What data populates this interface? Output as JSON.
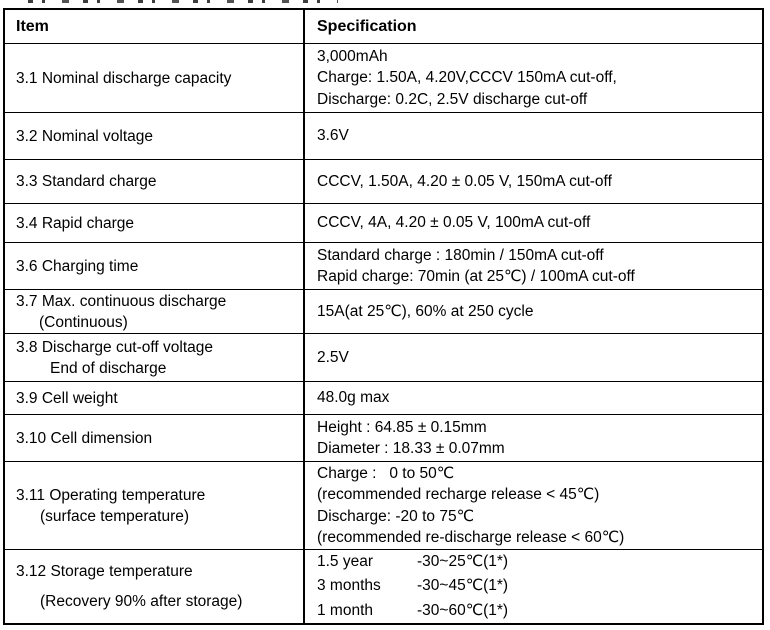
{
  "table": {
    "header": {
      "item": "Item",
      "spec": "Specification"
    },
    "rows": [
      {
        "item": [
          "3.1 Nominal discharge capacity"
        ],
        "spec": [
          "3,000mAh",
          "Charge: 1.50A, 4.20V,CCCV 150mA cut-off,",
          "Discharge: 0.2C, 2.5V discharge cut-off"
        ]
      },
      {
        "item": [
          "3.2 Nominal voltage"
        ],
        "spec": [
          "3.6V"
        ]
      },
      {
        "item": [
          "3.3 Standard charge"
        ],
        "spec": [
          "CCCV, 1.50A, 4.20 ± 0.05 V, 150mA cut-off"
        ]
      },
      {
        "item": [
          "3.4 Rapid charge"
        ],
        "spec": [
          "CCCV, 4A, 4.20 ± 0.05 V, 100mA cut-off"
        ]
      },
      {
        "item": [
          "3.6 Charging time"
        ],
        "spec": [
          "Standard charge : 180min / 150mA cut-off",
          "Rapid charge: 70min (at 25℃) / 100mA cut-off"
        ]
      },
      {
        "item": [
          "3.7 Max. continuous discharge",
          "(Continuous)"
        ],
        "spec": [
          "15A(at 25℃), 60% at 250 cycle"
        ]
      },
      {
        "item": [
          "3.8 Discharge cut-off voltage",
          "End of discharge"
        ],
        "spec": [
          "2.5V"
        ]
      },
      {
        "item": [
          "3.9 Cell weight"
        ],
        "spec": [
          "48.0g max"
        ]
      },
      {
        "item": [
          "3.10 Cell dimension"
        ],
        "spec": [
          "Height : 64.85 ± 0.15mm",
          "Diameter : 18.33 ± 0.07mm"
        ]
      },
      {
        "item": [
          "3.11 Operating temperature",
          "(surface temperature)"
        ],
        "spec": [
          "Charge :   0 to 50℃",
          "(recommended recharge release < 45℃)",
          "Discharge: -20 to 75℃",
          "(recommended re-discharge release < 60℃)"
        ]
      },
      {
        "item": [
          "3.12 Storage temperature",
          "(Recovery 90% after storage)"
        ],
        "spec_pairs": [
          {
            "period": "1.5 year",
            "temp": "-30~25℃(1*)"
          },
          {
            "period": "3 months",
            "temp": "-30~45℃(1*)"
          },
          {
            "period": "1 month",
            "temp": "-30~60℃(1*)"
          }
        ]
      }
    ]
  }
}
